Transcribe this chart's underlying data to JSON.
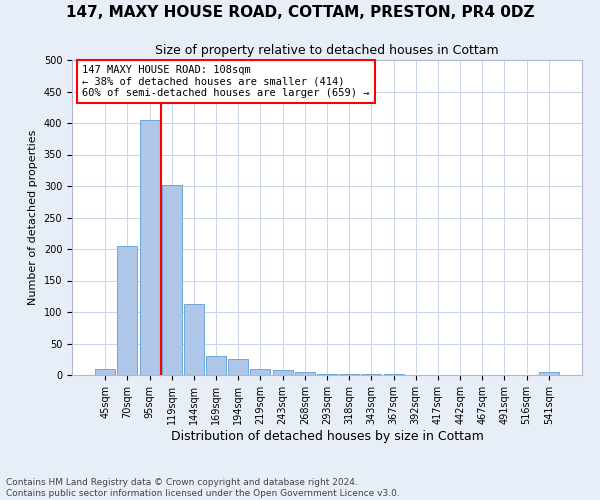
{
  "title1": "147, MAXY HOUSE ROAD, COTTAM, PRESTON, PR4 0DZ",
  "title2": "Size of property relative to detached houses in Cottam",
  "xlabel": "Distribution of detached houses by size in Cottam",
  "ylabel": "Number of detached properties",
  "footnote": "Contains HM Land Registry data © Crown copyright and database right 2024.\nContains public sector information licensed under the Open Government Licence v3.0.",
  "bar_labels": [
    "45sqm",
    "70sqm",
    "95sqm",
    "119sqm",
    "144sqm",
    "169sqm",
    "194sqm",
    "219sqm",
    "243sqm",
    "268sqm",
    "293sqm",
    "318sqm",
    "343sqm",
    "367sqm",
    "392sqm",
    "417sqm",
    "442sqm",
    "467sqm",
    "491sqm",
    "516sqm",
    "541sqm"
  ],
  "bar_values": [
    10,
    205,
    405,
    302,
    113,
    30,
    26,
    9,
    8,
    5,
    2,
    2,
    2,
    1,
    0,
    0,
    0,
    0,
    0,
    0,
    4
  ],
  "bar_color": "#aec6e8",
  "bar_edge_color": "#5a9fd4",
  "vline_x": 2.5,
  "vline_color": "red",
  "annotation_title": "147 MAXY HOUSE ROAD: 108sqm",
  "annotation_line1": "← 38% of detached houses are smaller (414)",
  "annotation_line2": "60% of semi-detached houses are larger (659) →",
  "annotation_box_color": "red",
  "ylim": [
    0,
    500
  ],
  "yticks": [
    0,
    50,
    100,
    150,
    200,
    250,
    300,
    350,
    400,
    450,
    500
  ],
  "background_color": "#e8eef8",
  "plot_background": "#ffffff",
  "title1_fontsize": 11,
  "title2_fontsize": 9,
  "xlabel_fontsize": 9,
  "ylabel_fontsize": 8,
  "tick_fontsize": 7,
  "footnote_fontsize": 6.5
}
